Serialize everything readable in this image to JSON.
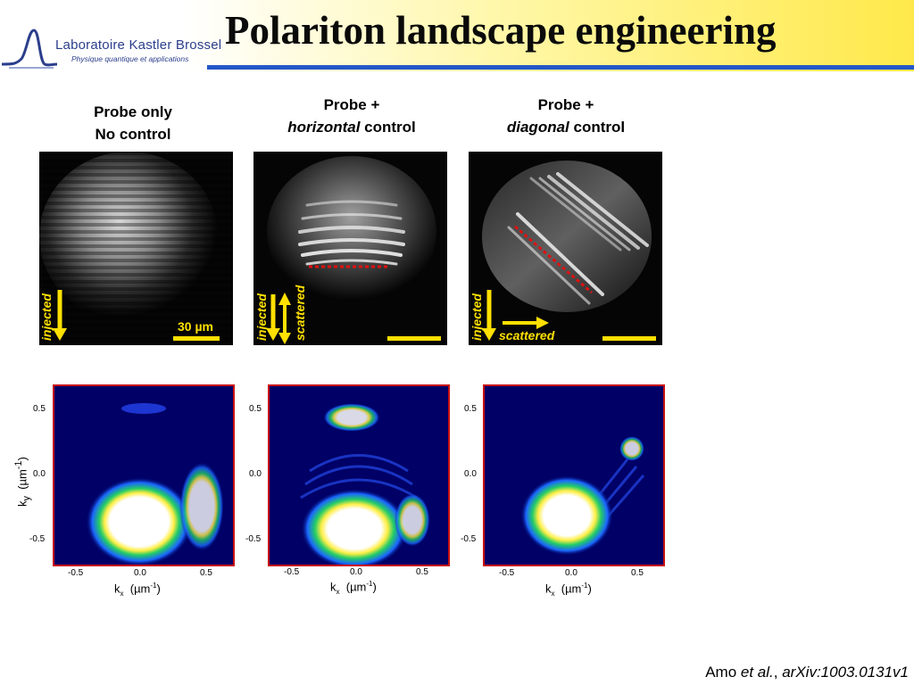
{
  "header": {
    "title": "Polariton landscape engineering",
    "logo_name": "Laboratoire Kastler Brossel",
    "logo_subtitle": "Physique quantique et applications"
  },
  "columns": [
    {
      "line1": "Probe only",
      "line2": "No control"
    },
    {
      "line1": "Probe +",
      "line2_italic": "horizontal",
      "line2_rest": " control"
    },
    {
      "line1": "Probe +",
      "line2_italic": "diagonal",
      "line2_rest": " control"
    }
  ],
  "real_space": {
    "injected_label": "injected",
    "scattered_label": "scattered",
    "scale_bar_label": "30 µm"
  },
  "momentum_space": {
    "x_ticks": [
      "-0.5",
      "0.0",
      "0.5"
    ],
    "y_ticks": [
      "0.5",
      "0.0",
      "-0.5"
    ],
    "x_label": "k",
    "x_label_sub": "x",
    "axis_unit": "(µm",
    "unit_sup": "-1",
    "unit_close": ")",
    "y_label": "k",
    "y_label_sub": "y"
  },
  "reference": {
    "author": "Amo ",
    "etal": "et al.",
    "sep": ", ",
    "arxiv": "arXiv:1003.0131v1"
  },
  "colors": {
    "accent_blue": "#2457c8",
    "arrow_yellow": "#ffe000",
    "dotted_red": "#e01010",
    "frame_red": "#c81010"
  }
}
